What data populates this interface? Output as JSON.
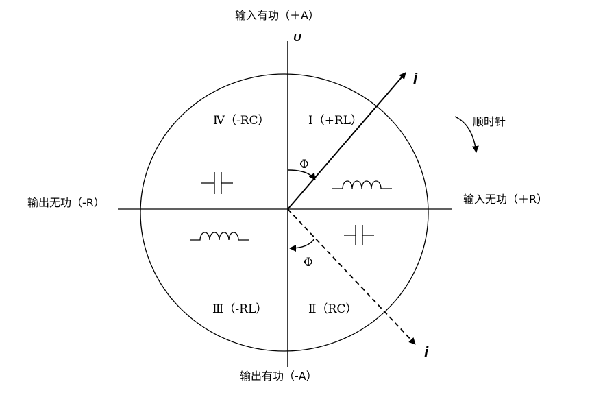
{
  "labels": {
    "top": "输入有功（＋A）",
    "bottom": "输出有功（-A）",
    "left": "输出无功（-R）",
    "right": "输入无功（＋R）",
    "clockwise": "顺时针",
    "voltage": "U",
    "current_leading": "i",
    "current_lagging": "i",
    "phi_upper": "Φ",
    "phi_lower": "Φ"
  },
  "quadrants": {
    "q1": "Ⅰ（+RL）",
    "q2": "Ⅱ（RC）",
    "q3": "Ⅲ（-RL）",
    "q4": "Ⅳ（-RC）"
  },
  "components": {
    "q1": "inductor-icon",
    "q2": "capacitor-icon",
    "q3": "inductor-icon",
    "q4": "capacitor-icon"
  }
}
